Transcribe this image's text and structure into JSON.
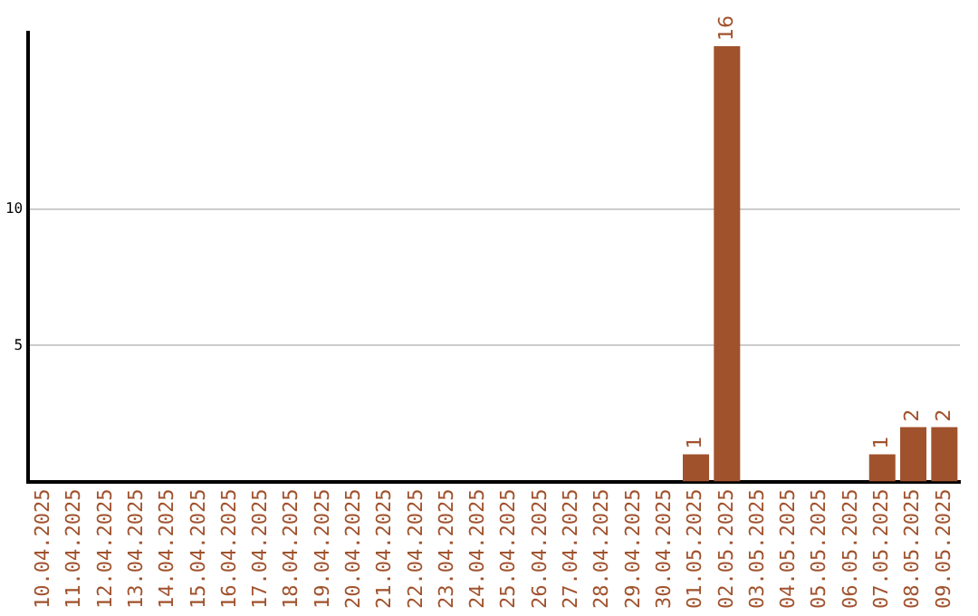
{
  "chart_data": {
    "type": "bar",
    "categories": [
      "10.04.2025",
      "11.04.2025",
      "12.04.2025",
      "13.04.2025",
      "14.04.2025",
      "15.04.2025",
      "16.04.2025",
      "17.04.2025",
      "18.04.2025",
      "19.04.2025",
      "20.04.2025",
      "21.04.2025",
      "22.04.2025",
      "23.04.2025",
      "24.04.2025",
      "25.04.2025",
      "26.04.2025",
      "27.04.2025",
      "28.04.2025",
      "29.04.2025",
      "30.04.2025",
      "01.05.2025",
      "02.05.2025",
      "03.05.2025",
      "04.05.2025",
      "05.05.2025",
      "06.05.2025",
      "07.05.2025",
      "08.05.2025",
      "09.05.2025"
    ],
    "values": [
      0,
      0,
      0,
      0,
      0,
      0,
      0,
      0,
      0,
      0,
      0,
      0,
      0,
      0,
      0,
      0,
      0,
      0,
      0,
      0,
      0,
      1,
      16,
      0,
      0,
      0,
      0,
      1,
      2,
      2
    ],
    "value_labels": [
      null,
      null,
      null,
      null,
      null,
      null,
      null,
      null,
      null,
      null,
      null,
      null,
      null,
      null,
      null,
      null,
      null,
      null,
      null,
      null,
      null,
      "1",
      "16",
      null,
      null,
      null,
      null,
      "1",
      "2",
      "2"
    ],
    "color": "#a0522d",
    "ylim": [
      0,
      16.5
    ],
    "yticks": [
      5,
      10
    ],
    "grid": "y"
  }
}
